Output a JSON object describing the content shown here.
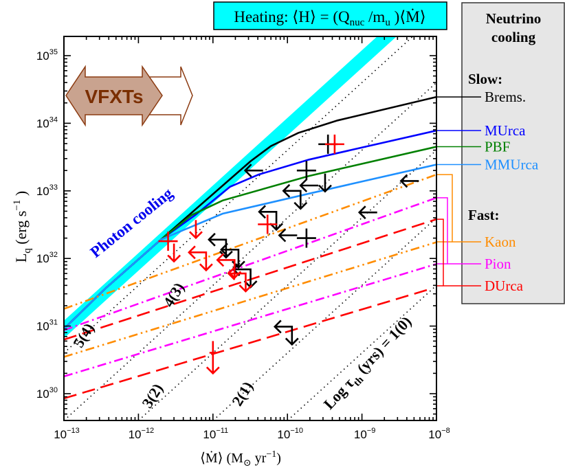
{
  "heating_box": {
    "prefix": "Heating: ⟨H⟩ = (Q",
    "sub1": "nuc",
    "mid": " /m",
    "sub2": "u",
    "suffix": " )⟨Ṁ⟩",
    "color": "#00ffff"
  },
  "legend": {
    "title_line1": "Neutrino",
    "title_line2": "cooling",
    "slow_heading": "Slow:",
    "fast_heading": "Fast:",
    "background": "#e6e6e6"
  },
  "vfxt_label": "VFXTs",
  "photon_cooling_label": "Photon cooling",
  "chart_data": {
    "type": "line",
    "title": "",
    "x_axis": {
      "label_prefix": "⟨Ṁ⟩ (M",
      "label_sub": "⊙",
      "label_mid": " yr",
      "label_sup": "−1",
      "label_suffix": ")",
      "scale": "log",
      "range": [
        1e-13,
        1e-08
      ],
      "ticks": [
        {
          "value": 1e-13,
          "base": "10",
          "exp": "−13"
        },
        {
          "value": 1e-12,
          "base": "10",
          "exp": "−12"
        },
        {
          "value": 1e-11,
          "base": "10",
          "exp": "−11"
        },
        {
          "value": 1e-10,
          "base": "10",
          "exp": "−10"
        },
        {
          "value": 1e-09,
          "base": "10",
          "exp": "−9"
        },
        {
          "value": 1e-08,
          "base": "10",
          "exp": "−8"
        }
      ]
    },
    "y_axis": {
      "label_prefix": "L",
      "label_sub": "q",
      "label_mid": "  (erg s",
      "label_sup": "−1",
      "label_suffix": " )",
      "scale": "log",
      "range": [
        4e+29,
        1.9e+35
      ],
      "ticks": [
        {
          "value": 1e+30,
          "base": "10",
          "exp": "30"
        },
        {
          "value": 1e+31,
          "base": "10",
          "exp": "31"
        },
        {
          "value": 1e+32,
          "base": "10",
          "exp": "32"
        },
        {
          "value": 1e+33,
          "base": "10",
          "exp": "33"
        },
        {
          "value": 1e+34,
          "base": "10",
          "exp": "34"
        },
        {
          "value": 1e+35,
          "base": "10",
          "exp": "35"
        }
      ]
    },
    "grid": false,
    "heating_band": {
      "coefficient": 8.9e+43,
      "half_width_dex": 0.13,
      "color": "#00ffff"
    },
    "tau_lines": [
      {
        "coefficient": 4e+39,
        "label": "1(0)"
      },
      {
        "coefficient": 4e+40,
        "label": "2(1)"
      },
      {
        "coefficient": 4e+41,
        "label": "3(2)"
      },
      {
        "coefficient": 4e+42,
        "label": "4(3)"
      },
      {
        "coefficient": 4e+43,
        "label": "5(4)"
      }
    ],
    "tau_main_label": {
      "prefix": "Log τ",
      "sub": "th",
      "suffix": " (yrs) = 1(0)"
    },
    "series": [
      {
        "name": "Brems.",
        "group": "slow",
        "color": "#000000",
        "style": "solid",
        "x": [
          1e-13,
          3.6e-13,
          2e-12,
          3.2e-11,
          6e-11,
          1.4e-10,
          4.7e-10,
          1e-08
        ],
        "y": [
          9.1e+30,
          3.6e+31,
          1.9e+32,
          2.75e+33,
          4.6e+33,
          7.2e+33,
          1.1e+34,
          2.45e+34
        ]
      },
      {
        "name": "MUrca",
        "group": "slow",
        "color": "#0000ff",
        "style": "solid",
        "x": [
          1e-13,
          3.6e-13,
          2e-12,
          5.8e-12,
          1.7e-11,
          4.1e-11,
          1.95e-10,
          1e-08
        ],
        "y": [
          9.1e+30,
          3.6e+31,
          1.9e+32,
          4.4e+32,
          1.15e+33,
          1.74e+33,
          2.9e+33,
          7.8e+33
        ]
      },
      {
        "name": "PBF",
        "group": "slow",
        "color": "#008000",
        "style": "solid",
        "x": [
          1e-13,
          3.6e-13,
          2e-12,
          5.2e-12,
          1.35e-11,
          1.95e-10,
          1e-08
        ],
        "y": [
          9.1e+30,
          3.6e+31,
          1.9e+32,
          4.4e+32,
          7.2e+32,
          1.66e+33,
          4.5e+33
        ]
      },
      {
        "name": "MMUrca",
        "group": "slow",
        "color": "#1e90ff",
        "style": "solid",
        "x": [
          1e-13,
          3.6e-13,
          2e-12,
          3.9e-12,
          1.35e-11,
          1.95e-10,
          1e-08
        ],
        "y": [
          9.1e+30,
          3.6e+31,
          1.9e+32,
          2.6e+32,
          4.6e+32,
          9.1e+32,
          2.45e+33
        ]
      },
      {
        "name": "Kaon",
        "group": "fast",
        "color": "#ff8c00",
        "style": "dash-dot-dot",
        "x": [
          1e-13,
          1e-08
        ],
        "y": [
          1.8e+31,
          1.74e+33
        ],
        "lower": {
          "x": [
            1e-13,
            1e-08
          ],
          "y": [
            3.5e+30,
            1.74e+32
          ]
        }
      },
      {
        "name": "Pion",
        "group": "fast",
        "color": "#ff00ff",
        "style": "dash-dot",
        "x": [
          1e-13,
          1e-08
        ],
        "y": [
          8.7e+30,
          7.9e+32
        ],
        "lower": {
          "x": [
            1e-13,
            1e-08
          ],
          "y": [
            1.8e+30,
            8.3e+31
          ]
        }
      },
      {
        "name": "DUrca",
        "group": "fast",
        "color": "#ff0000",
        "style": "dashed",
        "x": [
          1e-13,
          1e-08
        ],
        "y": [
          6.3e+30,
          3.8e+32
        ],
        "lower": {
          "x": [
            1e-13,
            8e-09
          ],
          "y": [
            8.5e+29,
            3.5e+31
          ]
        }
      }
    ],
    "observations": [
      {
        "color": "#000000",
        "kind": "cross",
        "x": 3.5e-10,
        "y": 4.9e+33
      },
      {
        "color": "#000000",
        "kind": "left",
        "x": 4.7e-11,
        "y": 2e+33
      },
      {
        "color": "#000000",
        "kind": "cross",
        "x": 1.8e-10,
        "y": 2e+33
      },
      {
        "color": "#000000",
        "kind": "left",
        "x": 2.6e-10,
        "y": 1.2e+33
      },
      {
        "color": "#000000",
        "kind": "down",
        "x": 3.2e-10,
        "y": 1.8e+33
      },
      {
        "color": "#000000",
        "kind": "left-down",
        "x": 1.5e-10,
        "y": 1e+33
      },
      {
        "color": "#000000",
        "kind": "left-down",
        "x": 7.1e-11,
        "y": 4.9e+32
      },
      {
        "color": "#000000",
        "kind": "left",
        "x": 1.35e-10,
        "y": 2.2e+32
      },
      {
        "color": "#000000",
        "kind": "cross",
        "x": 1.8e-10,
        "y": 2e+32
      },
      {
        "color": "#000000",
        "kind": "left-down",
        "x": 1.5e-11,
        "y": 1.9e+32
      },
      {
        "color": "#000000",
        "kind": "left-down",
        "x": 2.2e-11,
        "y": 1.35e+32
      },
      {
        "color": "#000000",
        "kind": "left-down",
        "x": 3.2e-11,
        "y": 6.9e+31
      },
      {
        "color": "#000000",
        "kind": "left",
        "x": 5.8e-09,
        "y": 1.4e+33
      },
      {
        "color": "#000000",
        "kind": "left",
        "x": 1.6e-09,
        "y": 4.8e+32
      },
      {
        "color": "#000000",
        "kind": "left-down",
        "x": 1.15e-10,
        "y": 9.8e+30
      },
      {
        "color": "#ff0000",
        "kind": "cross",
        "x": 4.3e-10,
        "y": 4.9e+33
      },
      {
        "color": "#ff0000",
        "kind": "cross",
        "x": 5.4e-11,
        "y": 3.2e+32
      },
      {
        "color": "#ff0000",
        "kind": "cross",
        "x": 2.5e-12,
        "y": 1.8e+32
      },
      {
        "color": "#ff0000",
        "kind": "down",
        "x": 3e-12,
        "y": 1.66e+32
      },
      {
        "color": "#ff0000",
        "kind": "down",
        "x": 5.9e-12,
        "y": 3.7e+32
      },
      {
        "color": "#ff0000",
        "kind": "left-down",
        "x": 8.1e-12,
        "y": 1.23e+32
      },
      {
        "color": "#ff0000",
        "kind": "left-down",
        "x": 1.95e-11,
        "y": 9.5e+31
      },
      {
        "color": "#ff0000",
        "kind": "left-down",
        "x": 2.75e-11,
        "y": 6e+31
      },
      {
        "color": "#ff0000",
        "kind": "down-long",
        "x": 1e-11,
        "y": 6e+30
      }
    ]
  }
}
